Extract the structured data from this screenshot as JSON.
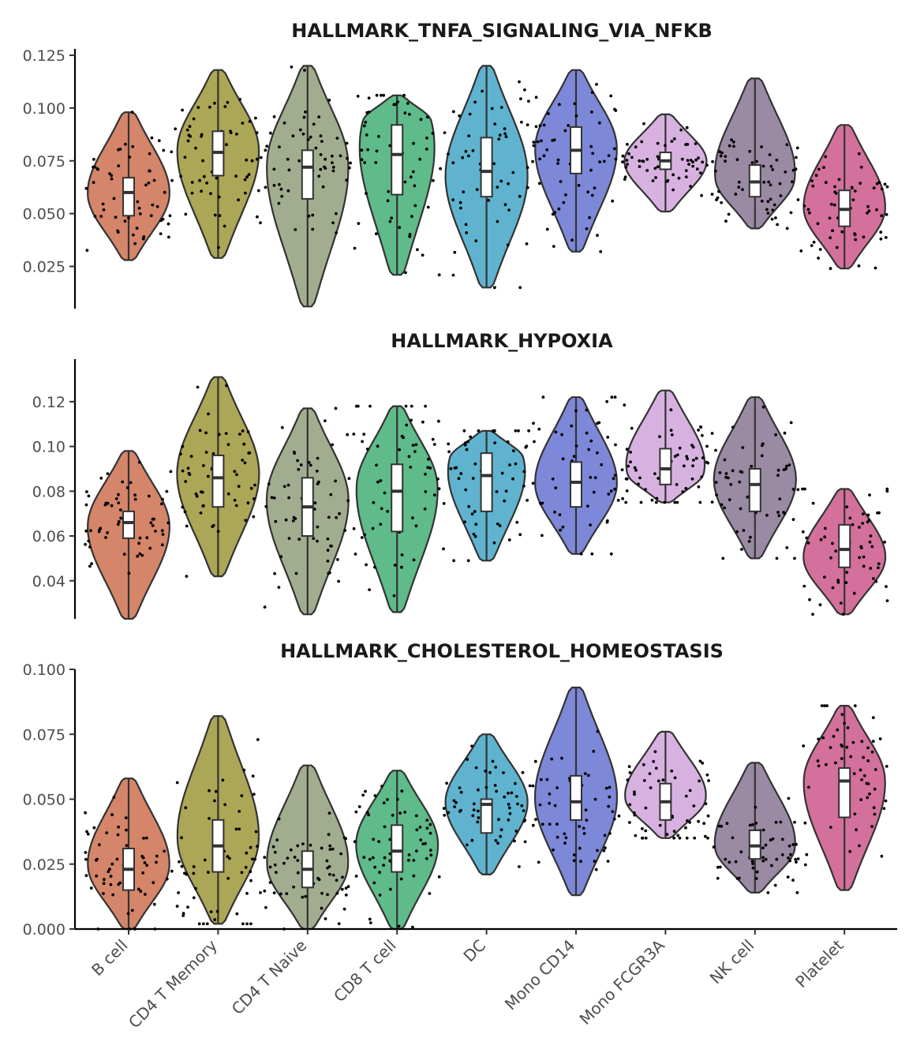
{
  "categories": [
    "B cell",
    "CD4 T Memory",
    "CD4 T Naive",
    "CD8 T cell",
    "DC",
    "Mono CD14",
    "Mono FCGR3A",
    "NK cell",
    "Platelet"
  ],
  "colors": [
    "#d4856a",
    "#aca657",
    "#a2ad90",
    "#5fbb8a",
    "#5fb3cf",
    "#7e88d8",
    "#d7b2e0",
    "#9b8aa3",
    "#d4709c"
  ],
  "chart_data": [
    {
      "type": "violin",
      "title": "HALLMARK_TNFA_SIGNALING_VIA_NFKB",
      "ylim": [
        0.005,
        0.128
      ],
      "yticks": [
        0.025,
        0.05,
        0.075,
        0.1,
        0.125
      ],
      "ytick_labels": [
        "0.025",
        "0.050",
        "0.075",
        "0.100",
        "0.125"
      ],
      "grid": false,
      "violins": [
        {
          "category": "B cell",
          "min": 0.028,
          "max": 0.098,
          "q1": 0.049,
          "median": 0.06,
          "q3": 0.067,
          "mode": 0.059
        },
        {
          "category": "CD4 T Memory",
          "min": 0.029,
          "max": 0.118,
          "q1": 0.068,
          "median": 0.079,
          "q3": 0.089,
          "mode": 0.081
        },
        {
          "category": "CD4 T Naive",
          "min": 0.006,
          "max": 0.12,
          "q1": 0.057,
          "median": 0.072,
          "q3": 0.08,
          "mode": 0.074
        },
        {
          "category": "CD8 T cell",
          "min": 0.021,
          "max": 0.106,
          "q1": 0.059,
          "median": 0.078,
          "q3": 0.092,
          "mode": 0.094
        },
        {
          "category": "DC",
          "min": 0.015,
          "max": 0.12,
          "q1": 0.058,
          "median": 0.07,
          "q3": 0.086,
          "mode": 0.068
        },
        {
          "category": "Mono CD14",
          "min": 0.032,
          "max": 0.118,
          "q1": 0.069,
          "median": 0.08,
          "q3": 0.091,
          "mode": 0.082
        },
        {
          "category": "Mono FCGR3A",
          "min": 0.051,
          "max": 0.097,
          "q1": 0.071,
          "median": 0.075,
          "q3": 0.079,
          "mode": 0.075
        },
        {
          "category": "NK cell",
          "min": 0.043,
          "max": 0.114,
          "q1": 0.058,
          "median": 0.065,
          "q3": 0.073,
          "mode": 0.066
        },
        {
          "category": "Platelet",
          "min": 0.024,
          "max": 0.092,
          "q1": 0.044,
          "median": 0.052,
          "q3": 0.061,
          "mode": 0.052
        }
      ]
    },
    {
      "type": "violin",
      "title": "HALLMARK_HYPOXIA",
      "ylim": [
        0.023,
        0.139
      ],
      "yticks": [
        0.04,
        0.06,
        0.08,
        0.1,
        0.12
      ],
      "ytick_labels": [
        "0.04",
        "0.06",
        "0.08",
        "0.10",
        "0.12"
      ],
      "grid": false,
      "violins": [
        {
          "category": "B cell",
          "min": 0.023,
          "max": 0.098,
          "q1": 0.059,
          "median": 0.066,
          "q3": 0.071,
          "mode": 0.065
        },
        {
          "category": "CD4 T Memory",
          "min": 0.042,
          "max": 0.131,
          "q1": 0.073,
          "median": 0.086,
          "q3": 0.096,
          "mode": 0.088
        },
        {
          "category": "CD4 T Naive",
          "min": 0.025,
          "max": 0.117,
          "q1": 0.06,
          "median": 0.073,
          "q3": 0.086,
          "mode": 0.077
        },
        {
          "category": "CD8 T cell",
          "min": 0.026,
          "max": 0.118,
          "q1": 0.062,
          "median": 0.08,
          "q3": 0.092,
          "mode": 0.083
        },
        {
          "category": "DC",
          "min": 0.049,
          "max": 0.107,
          "q1": 0.071,
          "median": 0.087,
          "q3": 0.097,
          "mode": 0.095
        },
        {
          "category": "Mono CD14",
          "min": 0.052,
          "max": 0.122,
          "q1": 0.073,
          "median": 0.084,
          "q3": 0.093,
          "mode": 0.083
        },
        {
          "category": "Mono FCGR3A",
          "min": 0.075,
          "max": 0.125,
          "q1": 0.083,
          "median": 0.09,
          "q3": 0.099,
          "mode": 0.088
        },
        {
          "category": "NK cell",
          "min": 0.05,
          "max": 0.122,
          "q1": 0.071,
          "median": 0.083,
          "q3": 0.09,
          "mode": 0.085
        },
        {
          "category": "Platelet",
          "min": 0.025,
          "max": 0.081,
          "q1": 0.046,
          "median": 0.054,
          "q3": 0.065,
          "mode": 0.05
        }
      ]
    },
    {
      "type": "violin",
      "title": "HALLMARK_CHOLESTEROL_HOMEOSTASIS",
      "ylim": [
        0.0,
        0.1
      ],
      "yticks": [
        0.0,
        0.025,
        0.05,
        0.075,
        0.1
      ],
      "ytick_labels": [
        "0.000",
        "0.025",
        "0.050",
        "0.075",
        "0.100"
      ],
      "grid": false,
      "violins": [
        {
          "category": "B cell",
          "min": 0.0,
          "max": 0.058,
          "q1": 0.015,
          "median": 0.023,
          "q3": 0.031,
          "mode": 0.024
        },
        {
          "category": "CD4 T Memory",
          "min": 0.002,
          "max": 0.082,
          "q1": 0.022,
          "median": 0.032,
          "q3": 0.042,
          "mode": 0.034
        },
        {
          "category": "CD4 T Naive",
          "min": 0.0,
          "max": 0.063,
          "q1": 0.016,
          "median": 0.023,
          "q3": 0.03,
          "mode": 0.024
        },
        {
          "category": "CD8 T cell",
          "min": 0.0,
          "max": 0.061,
          "q1": 0.022,
          "median": 0.03,
          "q3": 0.04,
          "mode": 0.033
        },
        {
          "category": "DC",
          "min": 0.021,
          "max": 0.075,
          "q1": 0.037,
          "median": 0.048,
          "q3": 0.05,
          "mode": 0.049
        },
        {
          "category": "Mono CD14",
          "min": 0.013,
          "max": 0.093,
          "q1": 0.042,
          "median": 0.049,
          "q3": 0.059,
          "mode": 0.05
        },
        {
          "category": "Mono FCGR3A",
          "min": 0.035,
          "max": 0.076,
          "q1": 0.042,
          "median": 0.049,
          "q3": 0.056,
          "mode": 0.05
        },
        {
          "category": "NK cell",
          "min": 0.014,
          "max": 0.064,
          "q1": 0.027,
          "median": 0.032,
          "q3": 0.038,
          "mode": 0.031
        },
        {
          "category": "Platelet",
          "min": 0.015,
          "max": 0.086,
          "q1": 0.043,
          "median": 0.057,
          "q3": 0.062,
          "mode": 0.058
        }
      ]
    }
  ]
}
